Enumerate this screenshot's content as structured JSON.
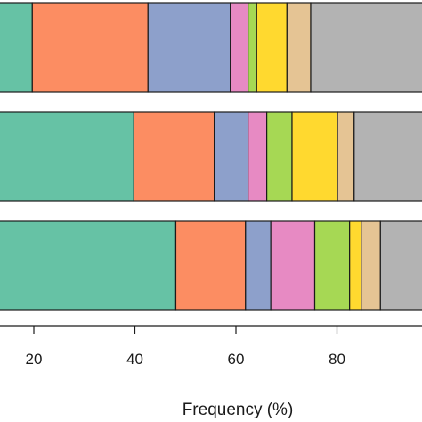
{
  "chart_data": {
    "type": "bar",
    "orientation": "horizontal",
    "stacked": true,
    "xlabel": "Frequency (%)",
    "xlim": [
      0,
      100
    ],
    "xticks": [
      20,
      40,
      60,
      80
    ],
    "grid": false,
    "colors": [
      "#66c2a5",
      "#fc8d62",
      "#8da0cb",
      "#e78ac3",
      "#a6d854",
      "#ffd92f",
      "#e5c494",
      "#b3b3b3"
    ],
    "rows": [
      {
        "segments": [
          19.7,
          22.9,
          16.3,
          3.5,
          1.7,
          6.0,
          4.7,
          25.2
        ]
      },
      {
        "segments": [
          39.8,
          15.9,
          6.7,
          3.7,
          5.0,
          9.0,
          3.3,
          16.6
        ]
      },
      {
        "segments": [
          48.1,
          13.8,
          5.0,
          8.7,
          6.9,
          2.3,
          3.8,
          11.4
        ]
      }
    ]
  }
}
